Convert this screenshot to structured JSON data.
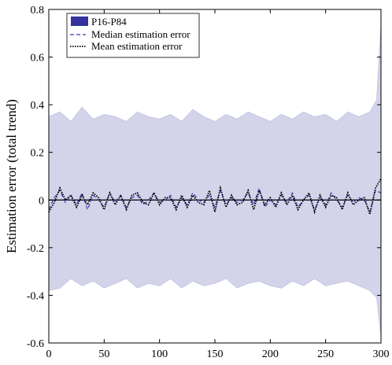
{
  "chart_data": {
    "type": "line",
    "title": "",
    "xlabel": "",
    "ylabel": "Estimation error (total trend)",
    "xlim": [
      0,
      300
    ],
    "ylim": [
      -0.6,
      0.8
    ],
    "xticks": [
      0,
      50,
      100,
      150,
      200,
      250,
      300
    ],
    "yticks": [
      -0.6,
      -0.4,
      -0.2,
      0,
      0.2,
      0.4,
      0.6,
      0.8
    ],
    "xtick_labels": [
      "0",
      "50",
      "100",
      "150",
      "200",
      "250",
      "300"
    ],
    "ytick_labels": [
      "-0.6",
      "-0.4",
      "-0.2",
      "0",
      "0.2",
      "0.4",
      "0.6",
      "0.8"
    ],
    "grid": false,
    "legend_position": "top-left",
    "band": {
      "name": "P16-P84",
      "color": "#d3d3ea",
      "legend_color": "#33339c",
      "x": [
        0,
        10,
        20,
        30,
        40,
        50,
        60,
        70,
        80,
        90,
        100,
        110,
        120,
        130,
        140,
        150,
        160,
        170,
        180,
        190,
        200,
        210,
        220,
        230,
        240,
        250,
        260,
        270,
        280,
        290,
        296,
        300
      ],
      "upper": [
        0.35,
        0.37,
        0.33,
        0.39,
        0.34,
        0.36,
        0.35,
        0.33,
        0.37,
        0.35,
        0.34,
        0.36,
        0.33,
        0.38,
        0.35,
        0.33,
        0.36,
        0.34,
        0.37,
        0.35,
        0.33,
        0.36,
        0.34,
        0.37,
        0.35,
        0.36,
        0.33,
        0.37,
        0.35,
        0.37,
        0.42,
        0.74
      ],
      "lower": [
        -0.38,
        -0.37,
        -0.33,
        -0.36,
        -0.34,
        -0.37,
        -0.35,
        -0.33,
        -0.37,
        -0.35,
        -0.36,
        -0.33,
        -0.37,
        -0.34,
        -0.36,
        -0.35,
        -0.33,
        -0.37,
        -0.35,
        -0.34,
        -0.36,
        -0.37,
        -0.34,
        -0.36,
        -0.33,
        -0.36,
        -0.35,
        -0.34,
        -0.36,
        -0.38,
        -0.41,
        -0.57
      ]
    },
    "series": [
      {
        "name": "Median estimation error",
        "color": "#3a3aa8",
        "style": "dashed",
        "x": [
          0,
          5,
          10,
          15,
          20,
          25,
          30,
          35,
          40,
          45,
          50,
          55,
          60,
          65,
          70,
          75,
          80,
          85,
          90,
          95,
          100,
          105,
          110,
          115,
          120,
          125,
          130,
          135,
          140,
          145,
          150,
          155,
          160,
          165,
          170,
          175,
          180,
          185,
          190,
          195,
          200,
          205,
          210,
          215,
          220,
          225,
          230,
          235,
          240,
          245,
          250,
          255,
          260,
          265,
          270,
          275,
          280,
          285,
          290,
          295,
          300
        ],
        "values": [
          -0.04,
          0.01,
          0.04,
          -0.01,
          0.02,
          -0.02,
          0.03,
          -0.04,
          0.02,
          0.0,
          -0.03,
          0.03,
          -0.01,
          0.02,
          -0.03,
          0.01,
          0.02,
          -0.02,
          0.0,
          0.03,
          -0.01,
          0.0,
          0.02,
          -0.03,
          0.01,
          -0.02,
          0.03,
          0.0,
          -0.01,
          0.02,
          -0.03,
          0.04,
          -0.02,
          0.01,
          -0.01,
          0.0,
          0.03,
          -0.02,
          0.05,
          -0.03,
          0.0,
          -0.02,
          0.02,
          -0.01,
          0.03,
          -0.03,
          0.0,
          0.02,
          -0.04,
          0.01,
          -0.02,
          0.03,
          0.0,
          -0.03,
          0.02,
          -0.01,
          0.01,
          0.0,
          -0.05,
          0.04,
          0.03
        ]
      },
      {
        "name": "Mean estimation error",
        "color": "#000000",
        "style": "dotted",
        "x": [
          0,
          5,
          10,
          15,
          20,
          25,
          30,
          35,
          40,
          45,
          50,
          55,
          60,
          65,
          70,
          75,
          80,
          85,
          90,
          95,
          100,
          105,
          110,
          115,
          120,
          125,
          130,
          135,
          140,
          145,
          150,
          155,
          160,
          165,
          170,
          175,
          180,
          185,
          190,
          195,
          200,
          205,
          210,
          215,
          220,
          225,
          230,
          235,
          240,
          245,
          250,
          255,
          260,
          265,
          270,
          275,
          280,
          285,
          290,
          295,
          300
        ],
        "values": [
          -0.05,
          -0.01,
          0.05,
          0.0,
          0.02,
          -0.03,
          0.02,
          -0.02,
          0.03,
          0.01,
          -0.04,
          0.03,
          -0.02,
          0.02,
          -0.04,
          0.02,
          0.03,
          -0.01,
          -0.02,
          0.03,
          -0.02,
          0.01,
          0.01,
          -0.04,
          0.02,
          -0.03,
          0.02,
          -0.01,
          -0.02,
          0.04,
          -0.05,
          0.05,
          -0.03,
          0.02,
          -0.02,
          -0.01,
          0.04,
          -0.04,
          0.04,
          -0.02,
          0.01,
          -0.03,
          0.03,
          -0.02,
          0.02,
          -0.04,
          0.0,
          0.03,
          -0.05,
          0.02,
          -0.03,
          0.02,
          0.01,
          -0.04,
          0.03,
          -0.02,
          0.0,
          0.01,
          -0.06,
          0.05,
          0.09
        ]
      }
    ],
    "reference_line": {
      "y": 0,
      "color": "#000000"
    }
  }
}
